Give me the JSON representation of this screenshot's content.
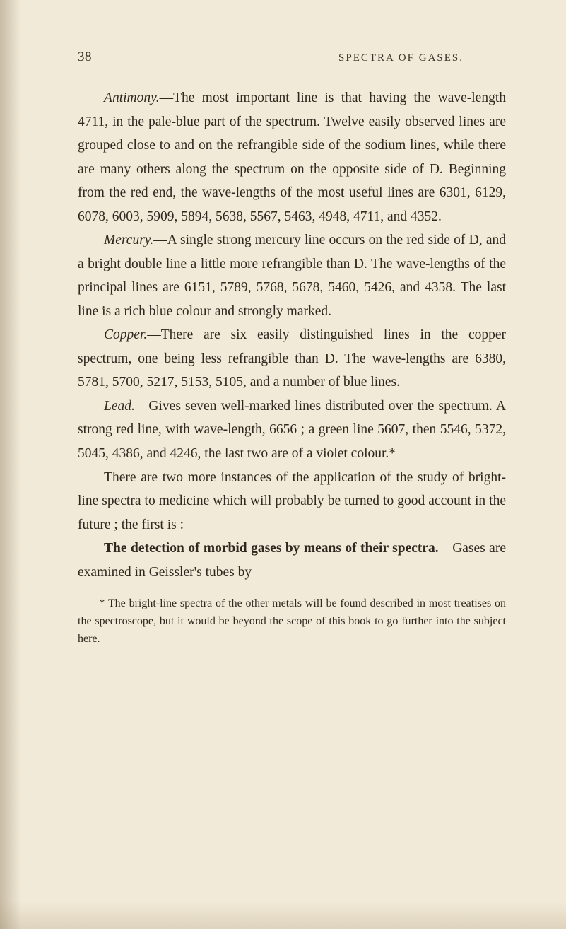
{
  "colors": {
    "page_bg": "#f2ead8",
    "text": "#2e281f",
    "header_text": "#3a3228"
  },
  "typography": {
    "body_fontsize": 19.5,
    "body_lineheight": 1.72,
    "header_fontsize": 18,
    "footnote_fontsize": 16,
    "font_family": "Georgia, Times New Roman, serif"
  },
  "page_number": "38",
  "running_title": "SPECTRA OF GASES.",
  "paragraphs": {
    "antimony_label": "Antimony.",
    "antimony_body": "—The most important line is that having the wave-length 4711, in the pale-blue part of the spectrum. Twelve easily observed lines are grouped close to and on the refrangible side of the sodium lines, while there are many others along the spectrum on the opposite side of D. Beginning from the red end, the wave-lengths of the most useful lines are 6301, 6129, 6078, 6003, 5909, 5894, 5638, 5567, 5463, 4948, 4711, and 4352.",
    "mercury_label": "Mercury.",
    "mercury_body": "—A single strong mercury line occurs on the red side of D, and a bright double line a little more refrangible than D. The wave-lengths of the principal lines are 6151, 5789, 5768, 5678, 5460, 5426, and 4358. The last line is a rich blue colour and strongly marked.",
    "copper_label": "Copper.",
    "copper_body": "—There are six easily distinguished lines in the copper spectrum, one being less refrangible than D. The wave-lengths are 6380, 5781, 5700, 5217, 5153, 5105, and a number of blue lines.",
    "lead_label": "Lead.",
    "lead_body": "—Gives seven well-marked lines distributed over the spectrum. A strong red line, with wave-length, 6656 ; a green line 5607, then 5546, 5372, 5045, 4386, and 4246, the last two are of a violet colour.*",
    "instances_body": "There are two more instances of the application of the study of bright-line spectra to medicine which will probably be turned to good account in the future ; the first is :",
    "detection_heading": "The detection of morbid gases by means of their spectra.",
    "detection_body": "—Gases are examined in Geissler's tubes by"
  },
  "footnote": "* The bright-line spectra of the other metals will be found described in most treatises on the spectroscope, but it would be beyond the scope of this book to go further into the subject here."
}
